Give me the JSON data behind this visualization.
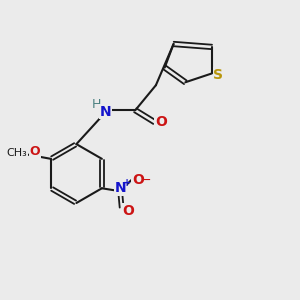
{
  "bg_color": "#ebebeb",
  "bond_color": "#1a1a1a",
  "S_color": "#b8960c",
  "N_color": "#1414cc",
  "O_color": "#cc1414",
  "NH_color": "#1414cc",
  "H_color": "#4a8080",
  "figsize": [
    3.0,
    3.0
  ],
  "dpi": 100,
  "xlim": [
    0,
    10
  ],
  "ylim": [
    0,
    10
  ]
}
